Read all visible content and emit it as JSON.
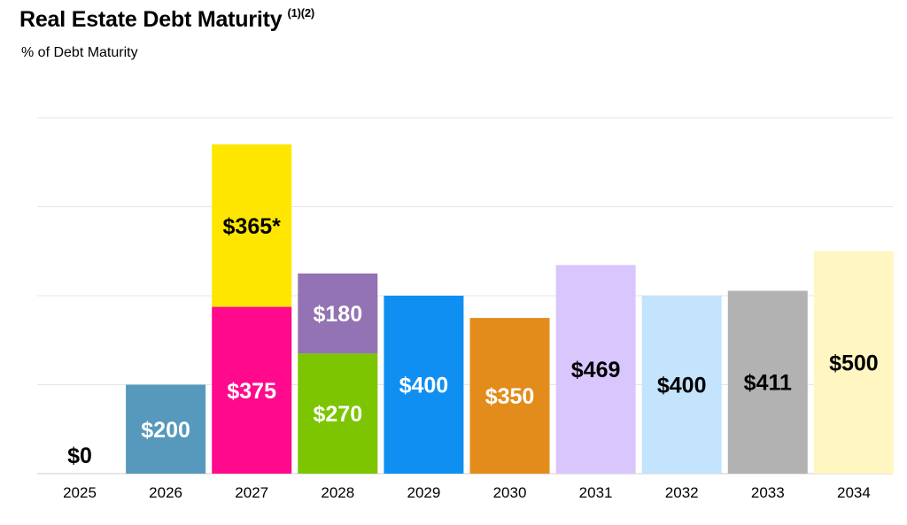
{
  "chart_data": {
    "type": "bar",
    "stacked": true,
    "title": "Real Estate Debt Maturity",
    "title_superscript": "(1)(2)",
    "subtitle": "% of Debt Maturity",
    "xlabel": "",
    "ylabel": "",
    "ylim": [
      0,
      800
    ],
    "grid": true,
    "categories": [
      "2025",
      "2026",
      "2027",
      "2028",
      "2029",
      "2030",
      "2031",
      "2032",
      "2033",
      "2034"
    ],
    "segments": [
      {
        "category": "2025",
        "value": 0,
        "label": "$0",
        "color": "#ffffff",
        "label_color": "#000000"
      },
      {
        "category": "2026",
        "value": 200,
        "label": "$200",
        "color": "#5799bd",
        "label_color": "#ffffff"
      },
      {
        "category": "2027",
        "value": 375,
        "label": "$375",
        "color": "#ff0a8c",
        "label_color": "#ffffff"
      },
      {
        "category": "2027",
        "value": 365,
        "label": "$365*",
        "color": "#ffe600",
        "label_color": "#000000"
      },
      {
        "category": "2028",
        "value": 270,
        "label": "$270",
        "color": "#7cc500",
        "label_color": "#ffffff"
      },
      {
        "category": "2028",
        "value": 180,
        "label": "$180",
        "color": "#9373b3",
        "label_color": "#ffffff"
      },
      {
        "category": "2029",
        "value": 400,
        "label": "$400",
        "color": "#0f8ff2",
        "label_color": "#ffffff"
      },
      {
        "category": "2030",
        "value": 350,
        "label": "$350",
        "color": "#e38c1c",
        "label_color": "#ffffff"
      },
      {
        "category": "2031",
        "value": 469,
        "label": "$469",
        "color": "#d8c6fc",
        "label_color": "#000000"
      },
      {
        "category": "2032",
        "value": 400,
        "label": "$400",
        "color": "#c4e3fc",
        "label_color": "#000000"
      },
      {
        "category": "2033",
        "value": 411,
        "label": "$411",
        "color": "#b2b2b2",
        "label_color": "#000000"
      },
      {
        "category": "2034",
        "value": 500,
        "label": "$500",
        "color": "#fff6c2",
        "label_color": "#000000"
      }
    ]
  }
}
